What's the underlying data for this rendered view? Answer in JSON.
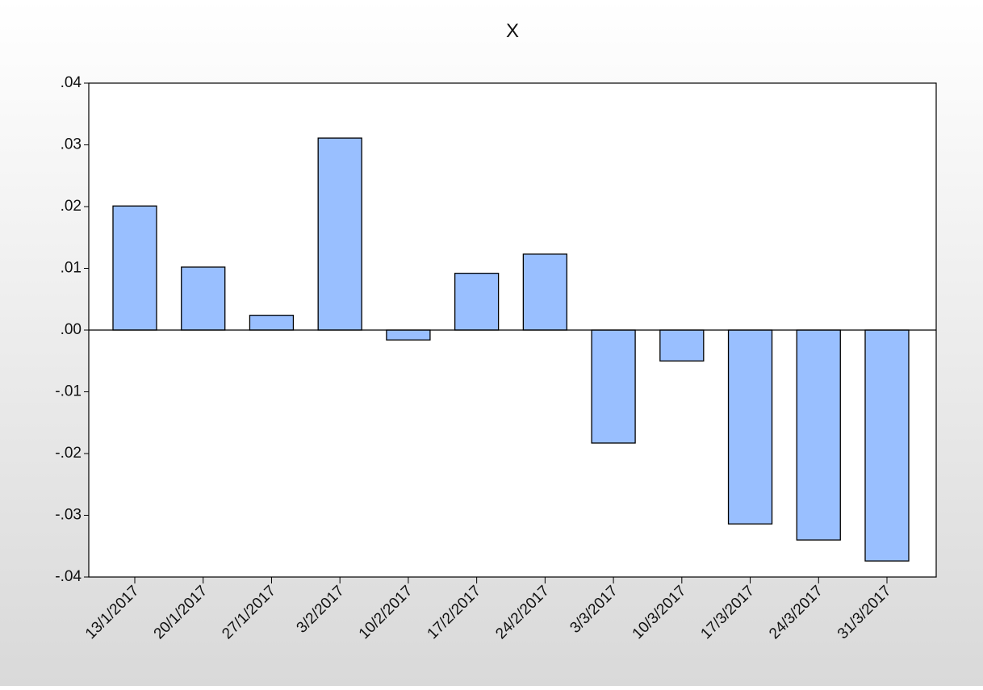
{
  "chart_data": {
    "type": "bar",
    "title": "X",
    "categories": [
      "13/1/2017",
      "20/1/2017",
      "27/1/2017",
      "3/2/2017",
      "10/2/2017",
      "17/2/2017",
      "24/2/2017",
      "3/3/2017",
      "10/3/2017",
      "17/3/2017",
      "24/3/2017",
      "31/3/2017"
    ],
    "values": [
      0.0201,
      0.0102,
      0.0024,
      0.0311,
      -0.0016,
      0.0092,
      0.0123,
      -0.0183,
      -0.005,
      -0.0314,
      -0.034,
      -0.0374
    ],
    "color": "#99bfff",
    "ylim": [
      -0.04,
      0.04
    ],
    "yticks": [
      {
        "value": -0.04,
        "label": "-.04"
      },
      {
        "value": -0.03,
        "label": "-.03"
      },
      {
        "value": -0.02,
        "label": "-.02"
      },
      {
        "value": -0.01,
        "label": "-.01"
      },
      {
        "value": 0,
        "label": ".00"
      },
      {
        "value": 0.01,
        "label": ".01"
      },
      {
        "value": 0.02,
        "label": ".02"
      },
      {
        "value": 0.03,
        "label": ".03"
      },
      {
        "value": 0.04,
        "label": ".04"
      }
    ],
    "grid": false
  }
}
